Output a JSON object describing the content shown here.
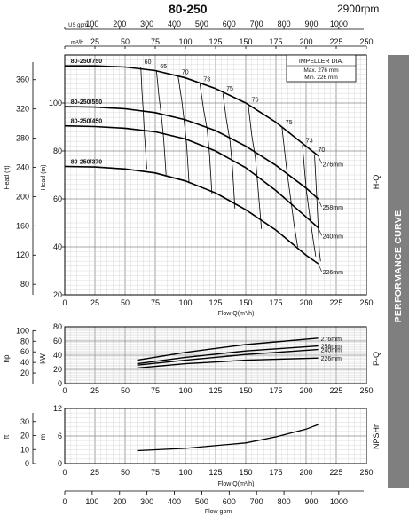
{
  "header": {
    "model": "80-250",
    "speed": "2900rpm"
  },
  "sidebar": {
    "label": "PERFORMANCE CURVE"
  },
  "colors": {
    "grid": "#cfcfcf",
    "gridMajor": "#8a8a8a",
    "curve": "#000000",
    "sidebar": "#7f7f7f"
  },
  "chart_data": {
    "type": "line",
    "flow_axis": {
      "label": "Flow Q(m³/h)",
      "ticks": [
        0,
        25,
        50,
        75,
        100,
        125,
        150,
        175,
        200,
        225,
        250
      ],
      "lim": [
        0,
        250
      ]
    },
    "top_axes": {
      "usgpm_label": "US gpm",
      "usgpm_ticks": [
        0,
        100,
        200,
        300,
        400,
        500,
        600,
        700,
        800,
        900,
        1000
      ],
      "m3h_label": "m³/h",
      "m3h_ticks": [
        0,
        25,
        50,
        75,
        100,
        125,
        150,
        175,
        200,
        225,
        250
      ]
    },
    "bottom_axis": {
      "label": "Flow gpm",
      "ticks": [
        0,
        100,
        200,
        300,
        400,
        500,
        600,
        700,
        800,
        900,
        1000
      ]
    },
    "hq": {
      "ylabel_m": "Head (m)",
      "ylabel_ft": "Head (ft)",
      "yticks_m": [
        20,
        40,
        60,
        80,
        100
      ],
      "ylim_m": [
        20,
        120
      ],
      "yticks_ft": [
        80,
        120,
        160,
        200,
        240,
        280,
        320,
        360
      ],
      "side_label": "H-Q",
      "legend_title": "IMPELLER DIA.",
      "legend_max": "Max.  276 mm",
      "legend_min": "Min.  226 mm",
      "series": [
        {
          "name": "80-250/750",
          "end_label": "276mm",
          "x": [
            0,
            25,
            50,
            75,
            100,
            125,
            150,
            175,
            200,
            210
          ],
          "y": [
            115.5,
            115.5,
            115,
            113.5,
            110.5,
            106,
            100,
            92,
            82,
            78
          ]
        },
        {
          "name": "80-250/550",
          "end_label": "258mm",
          "x": [
            0,
            25,
            50,
            75,
            100,
            125,
            150,
            175,
            200,
            210
          ],
          "y": [
            98.5,
            98.3,
            97.6,
            96,
            93,
            88.5,
            82,
            74,
            64.5,
            60
          ]
        },
        {
          "name": "80-250/450",
          "end_label": "240mm",
          "x": [
            0,
            25,
            50,
            75,
            100,
            125,
            150,
            175,
            200,
            210
          ],
          "y": [
            90.5,
            90.2,
            89.5,
            88,
            85,
            80,
            73,
            63.5,
            52.5,
            48
          ]
        },
        {
          "name": "80-250/370",
          "end_label": "226mm",
          "x": [
            0,
            25,
            50,
            75,
            100,
            125,
            150,
            175,
            200,
            210
          ],
          "y": [
            73.5,
            73.3,
            72.5,
            70.8,
            67.5,
            62.5,
            55.5,
            47,
            36.5,
            33
          ]
        }
      ],
      "efficiency_labels": [
        "60",
        "65",
        "70",
        "73",
        "75",
        "76",
        "75",
        "73",
        "70"
      ],
      "efficiency_curves": [
        {
          "x": [
            63,
            64,
            65,
            66,
            68
          ],
          "y": [
            115.2,
            105,
            97,
            87,
            72.5
          ]
        },
        {
          "x": [
            76,
            78,
            80,
            82,
            84
          ],
          "y": [
            113.3,
            103,
            95,
            85,
            70
          ]
        },
        {
          "x": [
            94,
            97,
            99,
            101,
            103
          ],
          "y": [
            111,
            101,
            92.5,
            82.5,
            66.5
          ]
        },
        {
          "x": [
            112,
            115,
            118,
            120,
            122
          ],
          "y": [
            108,
            97.5,
            89,
            78.5,
            62
          ]
        },
        {
          "x": [
            131,
            134,
            137,
            139,
            141
          ],
          "y": [
            104,
            93,
            84,
            73,
            56
          ]
        },
        {
          "x": [
            152,
            155,
            158,
            160,
            163
          ],
          "y": [
            99.5,
            86.5,
            77,
            65.5,
            47.5
          ]
        },
        {
          "x": [
            180,
            184,
            187,
            190,
            193
          ],
          "y": [
            90,
            72,
            61,
            49.5,
            40
          ]
        },
        {
          "x": [
            197,
            200,
            203,
            206,
            208
          ],
          "y": [
            82.5,
            64.5,
            53,
            42.5,
            36
          ]
        },
        {
          "x": [
            207,
            209,
            210,
            211,
            212
          ],
          "y": [
            78.5,
            59.5,
            48.5,
            38,
            34
          ]
        }
      ]
    },
    "pq": {
      "ylabel_kw": "kW",
      "ylabel_hp": "hp",
      "side_label": "P-Q",
      "yticks_kw": [
        0,
        20,
        40,
        60,
        80
      ],
      "ylim_kw": [
        0,
        80
      ],
      "yticks_hp": [
        20,
        40,
        60,
        80,
        100
      ],
      "series": [
        {
          "end_label": "276mm",
          "x": [
            60,
            100,
            150,
            210
          ],
          "y": [
            33,
            44,
            55,
            64
          ]
        },
        {
          "end_label": "258mm",
          "x": [
            60,
            100,
            150,
            210
          ],
          "y": [
            28,
            37,
            46,
            53
          ]
        },
        {
          "end_label": "240mm",
          "x": [
            60,
            100,
            150,
            210
          ],
          "y": [
            26,
            33,
            41,
            48
          ]
        },
        {
          "end_label": "226mm",
          "x": [
            60,
            100,
            150,
            210
          ],
          "y": [
            22,
            28,
            33,
            36
          ]
        }
      ]
    },
    "npsh": {
      "ylabel_m": "m",
      "ylabel_ft": "ft",
      "side_label": "NPSHr",
      "yticks_m": [
        0,
        6,
        12
      ],
      "ylim_m": [
        0,
        12
      ],
      "yticks_ft": [
        0,
        10,
        20,
        30
      ],
      "series": [
        {
          "x": [
            60,
            100,
            150,
            175,
            200,
            210
          ],
          "y": [
            2.8,
            3.3,
            4.5,
            5.8,
            7.5,
            8.5
          ]
        }
      ]
    }
  }
}
